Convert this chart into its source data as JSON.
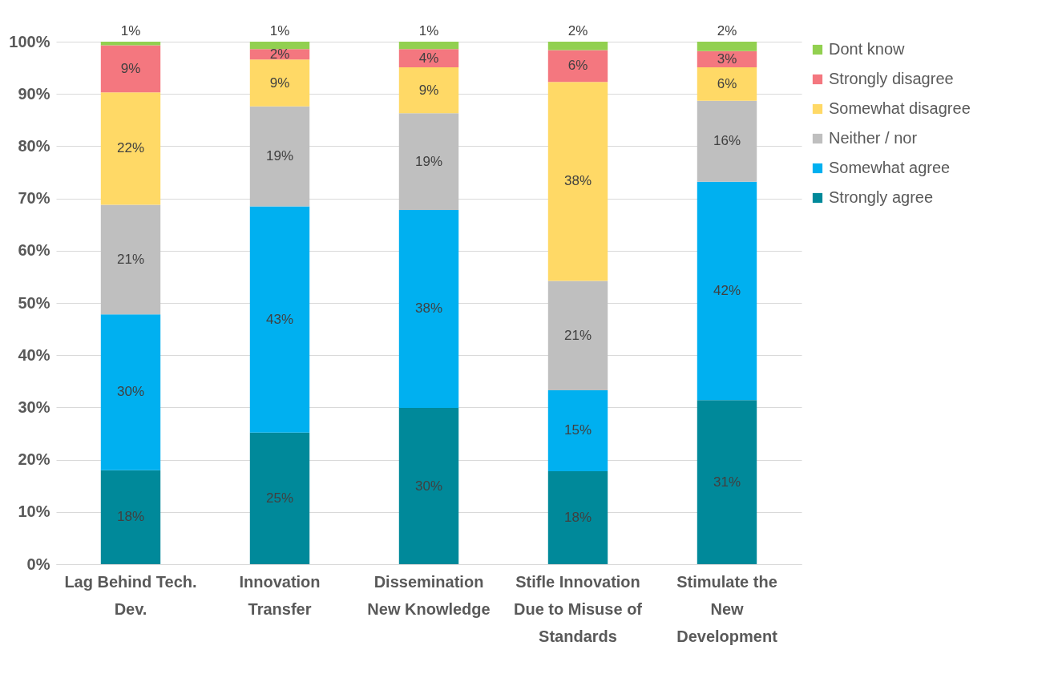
{
  "chart_data": {
    "type": "bar",
    "stacked": true,
    "categories": [
      "Lag Behind Tech. Dev.",
      "Innovation Transfer",
      "Dissemination New Knowledge",
      "Stifle Innovation Due to Misuse of Standards",
      "Stimulate the New Development"
    ],
    "series": [
      {
        "name": "Strongly agree",
        "color": "#00899a",
        "values": [
          18,
          25.2,
          29.9,
          17.8,
          31.4
        ],
        "value_labels": [
          "18%",
          "25%",
          "30%",
          "18%",
          "31%"
        ]
      },
      {
        "name": "Somewhat agree",
        "color": "#00b0f0",
        "values": [
          29.8,
          43.3,
          37.9,
          15.5,
          41.8
        ],
        "value_labels": [
          "30%",
          "43%",
          "38%",
          "15%",
          "42%"
        ]
      },
      {
        "name": "Neither / nor",
        "color": "#bfbfbf",
        "values": [
          21,
          19.1,
          18.5,
          20.9,
          15.5
        ],
        "value_labels": [
          "21%",
          "19%",
          "19%",
          "21%",
          "16%"
        ]
      },
      {
        "name": "Somewhat disagree",
        "color": "#ffd966",
        "values": [
          21.5,
          9,
          8.8,
          38.1,
          6.4
        ],
        "value_labels": [
          "22%",
          "9%",
          "9%",
          "38%",
          "6%"
        ]
      },
      {
        "name": "Strongly disagree",
        "color": "#f4777f",
        "values": [
          9,
          2,
          3.5,
          6.1,
          3.1
        ],
        "value_labels": [
          "9%",
          "2%",
          "4%",
          "6%",
          "3%"
        ]
      },
      {
        "name": "Dont know",
        "color": "#92d050",
        "values": [
          0.7,
          1.4,
          1.4,
          1.6,
          1.8
        ],
        "value_labels": [
          "1%",
          "1%",
          "1%",
          "2%",
          "2%"
        ]
      }
    ],
    "ylim": [
      0,
      100
    ],
    "yticks": [
      {
        "value": 0,
        "label": "0%"
      },
      {
        "value": 10,
        "label": "10%"
      },
      {
        "value": 20,
        "label": "20%"
      },
      {
        "value": 30,
        "label": "30%"
      },
      {
        "value": 40,
        "label": "40%"
      },
      {
        "value": 50,
        "label": "50%"
      },
      {
        "value": 60,
        "label": "60%"
      },
      {
        "value": 70,
        "label": "70%"
      },
      {
        "value": 80,
        "label": "80%"
      },
      {
        "value": 90,
        "label": "90%"
      },
      {
        "value": 100,
        "label": "100%"
      }
    ],
    "grid": "y",
    "legend": "right"
  }
}
